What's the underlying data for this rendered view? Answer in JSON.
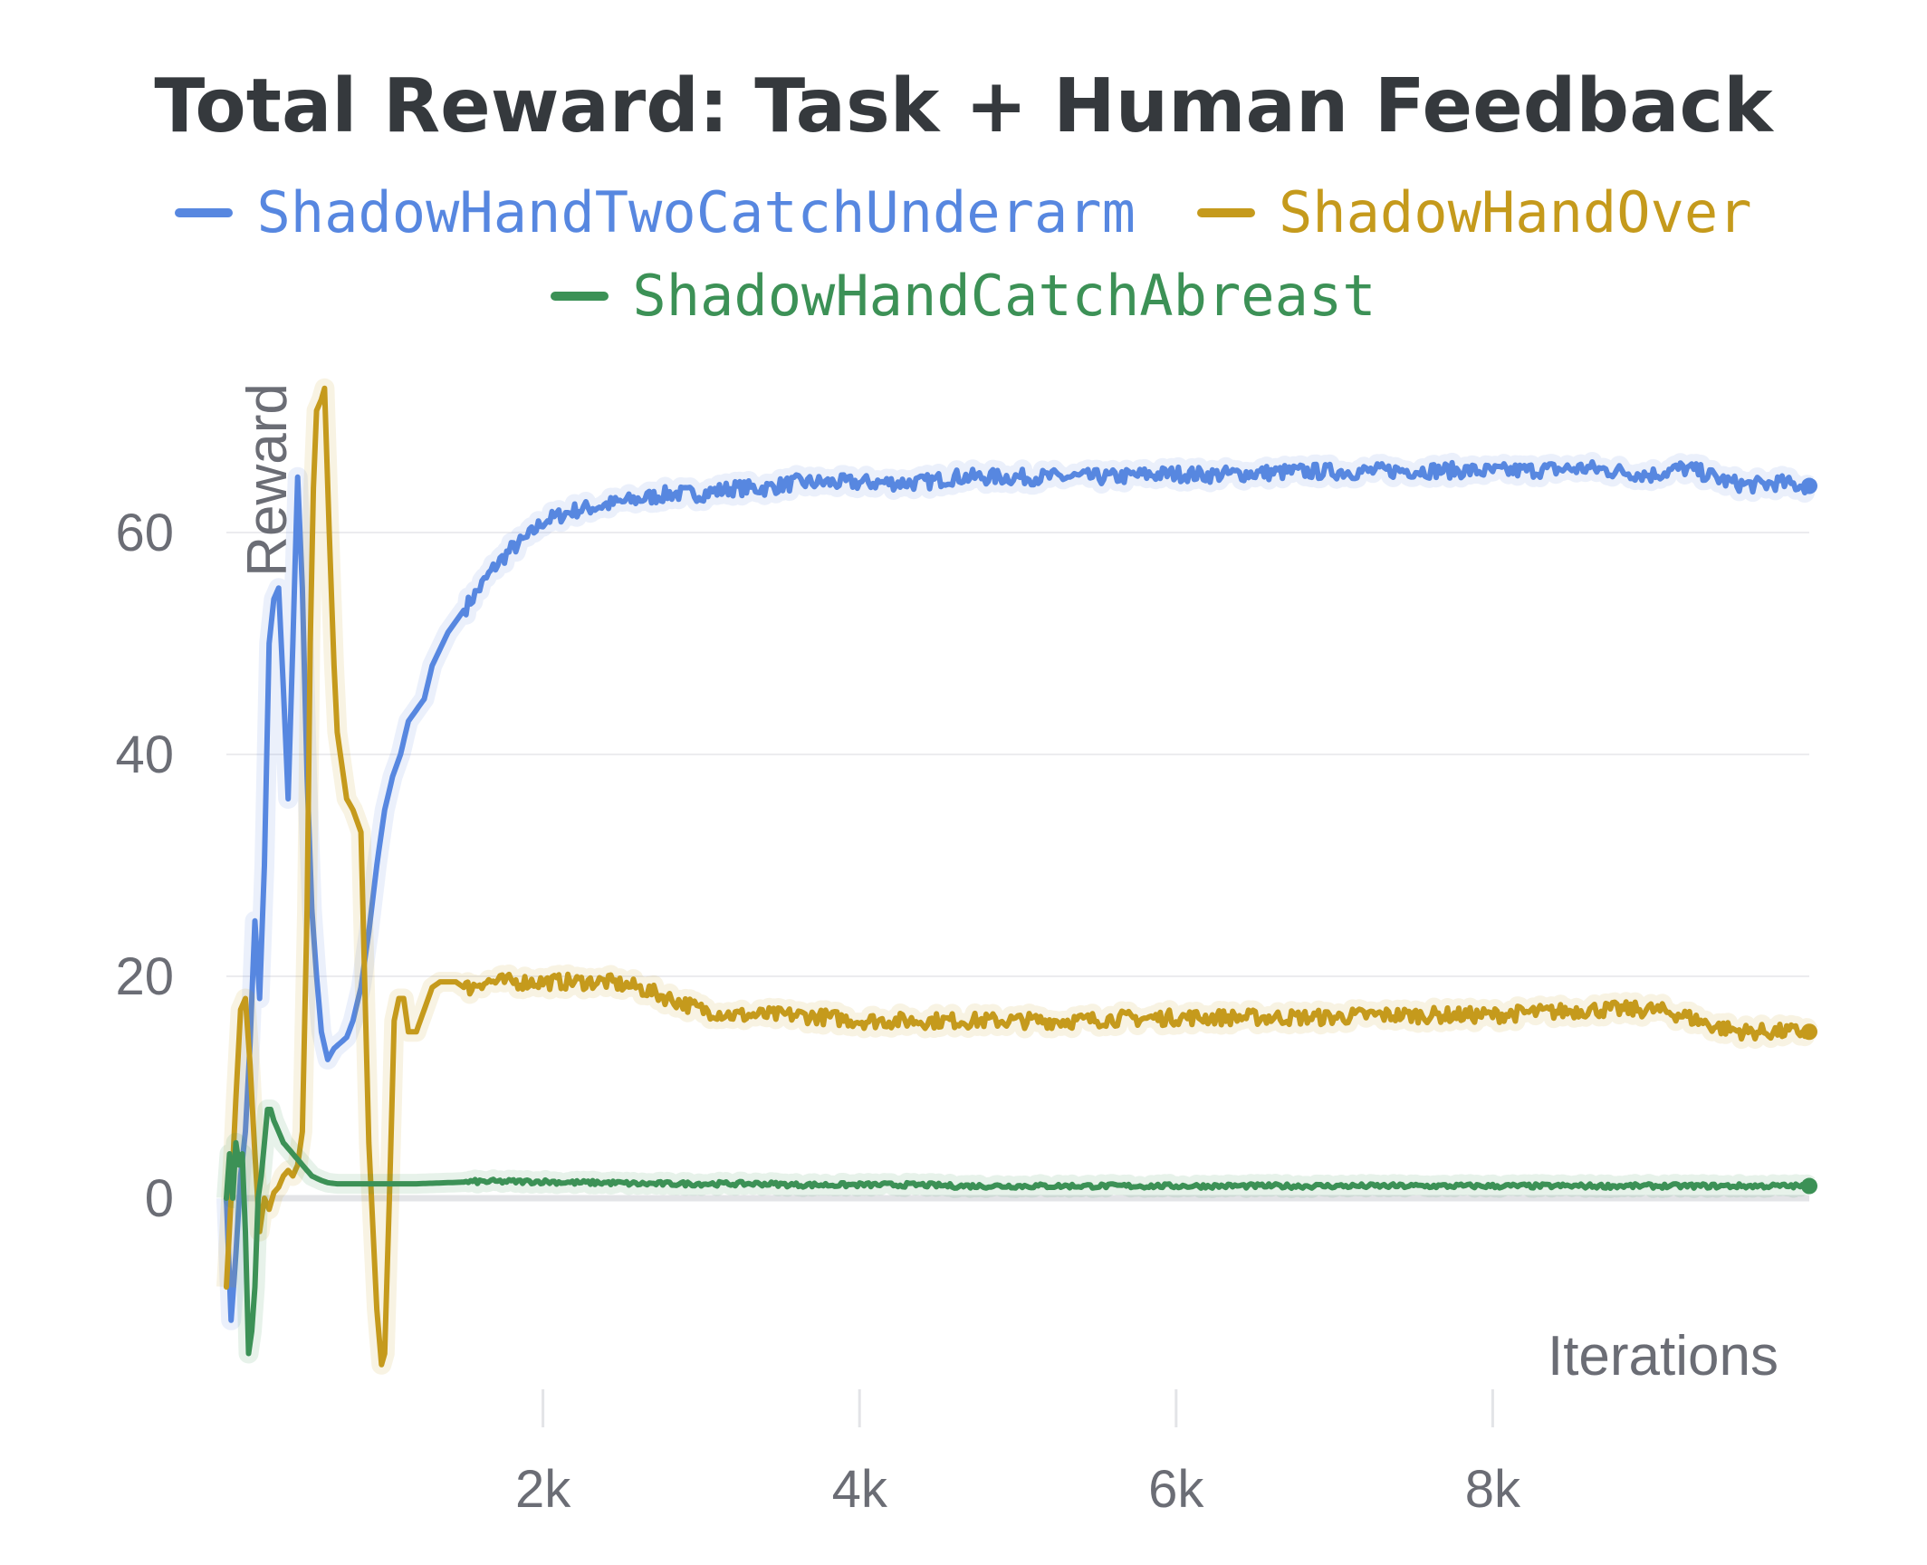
{
  "chart_data": {
    "type": "line",
    "title": "Total Reward: Task + Human Feedback",
    "xlabel": "Iterations",
    "ylabel": "Reward",
    "xlim": [
      0,
      10000
    ],
    "ylim": [
      -19,
      74
    ],
    "x_ticks": [
      2000,
      4000,
      6000,
      8000
    ],
    "x_tick_labels": [
      "2k",
      "4k",
      "6k",
      "8k"
    ],
    "y_ticks": [
      0,
      20,
      40,
      60
    ],
    "y_tick_labels": [
      "0",
      "20",
      "40",
      "60"
    ],
    "grid": true,
    "legend_position": "top",
    "series": [
      {
        "name": "ShadowHandTwoCatchUnderarm",
        "color": "#5787e0",
        "x": [
          0,
          30,
          60,
          90,
          120,
          150,
          180,
          210,
          240,
          270,
          300,
          330,
          360,
          390,
          420,
          450,
          480,
          510,
          540,
          570,
          600,
          640,
          680,
          720,
          760,
          800,
          850,
          900,
          950,
          1000,
          1050,
          1100,
          1150,
          1200,
          1250,
          1300,
          1400,
          1500,
          1600,
          1700,
          1800,
          1900,
          2000,
          2100,
          2200,
          2400,
          2600,
          2800,
          3000,
          3200,
          3400,
          3600,
          3800,
          4000,
          4200,
          4400,
          4600,
          4800,
          5000,
          5200,
          5400,
          5600,
          5800,
          6000,
          6200,
          6400,
          6600,
          6800,
          7000,
          7200,
          7400,
          7600,
          7800,
          8000,
          8200,
          8400,
          8600,
          8800,
          9000,
          9100,
          9200,
          9300,
          9400,
          9500,
          9600,
          9700,
          9800,
          9900,
          10000
        ],
        "y": [
          0,
          -11,
          -5,
          2,
          6,
          14,
          25,
          18,
          30,
          50,
          54,
          55,
          46,
          36,
          50,
          65,
          55,
          38,
          26,
          20,
          15,
          12.5,
          13.5,
          14,
          14.5,
          16,
          19,
          24,
          30,
          35,
          38,
          40,
          43,
          44,
          45,
          48,
          51,
          53,
          55,
          57,
          58.5,
          59.5,
          61,
          61.5,
          62,
          62.5,
          63,
          63.5,
          63.5,
          64,
          64,
          64.5,
          64.5,
          64.5,
          64.5,
          64.5,
          65,
          65,
          65,
          65,
          65,
          65,
          65.2,
          65.3,
          65.2,
          65.3,
          65.4,
          65.5,
          65.5,
          65.5,
          65.6,
          65.6,
          65.6,
          65.5,
          65.6,
          65.7,
          65.8,
          65.5,
          65.2,
          65.5,
          65.8,
          65.5,
          65,
          64.5,
          64.3,
          64.3,
          64.5,
          64.3,
          64.2
        ]
      },
      {
        "name": "ShadowHandOver",
        "color": "#c59a1c",
        "x": [
          0,
          30,
          60,
          90,
          120,
          150,
          180,
          210,
          240,
          270,
          300,
          330,
          360,
          390,
          420,
          450,
          480,
          510,
          530,
          550,
          570,
          600,
          620,
          650,
          680,
          700,
          730,
          760,
          800,
          850,
          900,
          950,
          980,
          1000,
          1030,
          1060,
          1090,
          1120,
          1150,
          1200,
          1250,
          1300,
          1350,
          1400,
          1450,
          1500,
          1550,
          1600,
          1700,
          1800,
          1900,
          2000,
          2100,
          2200,
          2300,
          2400,
          2600,
          2800,
          3000,
          3200,
          3400,
          3600,
          3800,
          4000,
          4200,
          4400,
          4600,
          4800,
          5000,
          5200,
          5400,
          5600,
          5800,
          6000,
          6200,
          6400,
          6600,
          6800,
          7000,
          7200,
          7400,
          7600,
          7800,
          8000,
          8200,
          8400,
          8600,
          8800,
          9000,
          9100,
          9200,
          9300,
          9400,
          9500,
          9600,
          9700,
          9800,
          9900,
          10000
        ],
        "y": [
          -8,
          0,
          9,
          17,
          18,
          12,
          4,
          -3,
          0,
          -1,
          0.5,
          1,
          2,
          2.5,
          2,
          3,
          6,
          26,
          50,
          64,
          71,
          72,
          73,
          60,
          48,
          42,
          39,
          36,
          35,
          33,
          5,
          -10,
          -15,
          -14,
          0,
          16,
          18,
          18,
          15,
          15,
          17,
          19,
          19.5,
          19.5,
          19.5,
          19,
          19,
          19.5,
          19.5,
          19.5,
          19.5,
          19.5,
          19.5,
          19.5,
          19.5,
          19.5,
          19,
          18,
          17,
          16.5,
          16.5,
          16.5,
          16.3,
          16,
          16,
          16,
          16,
          16,
          16,
          16,
          16,
          16.2,
          16.2,
          16.3,
          16.3,
          16.3,
          16.3,
          16.3,
          16.3,
          16.5,
          16.5,
          16.5,
          16.5,
          16.5,
          16.7,
          16.8,
          17,
          17,
          17,
          16.8,
          16.5,
          16,
          15.5,
          15.2,
          15,
          15,
          15,
          15,
          15
        ]
      },
      {
        "name": "ShadowHandCatchAbreast",
        "color": "#3c9156",
        "x": [
          0,
          20,
          40,
          60,
          80,
          100,
          120,
          140,
          160,
          180,
          200,
          220,
          240,
          260,
          280,
          300,
          330,
          360,
          390,
          420,
          450,
          480,
          510,
          540,
          570,
          600,
          640,
          700,
          800,
          900,
          1000,
          1200,
          1400,
          1600,
          1800,
          2000,
          2200,
          2400,
          2600,
          2800,
          3000,
          3200,
          3400,
          3600,
          3800,
          4000,
          4200,
          4400,
          4600,
          4800,
          5000,
          5200,
          5400,
          5600,
          5800,
          6000,
          6200,
          6400,
          6600,
          6800,
          7000,
          7200,
          7400,
          7600,
          7800,
          8000,
          8200,
          8400,
          8600,
          8800,
          9000,
          9200,
          9400,
          9600,
          9800,
          10000
        ],
        "y": [
          0,
          4,
          0,
          5,
          3,
          4,
          -3,
          -14,
          -12,
          -8,
          0,
          2,
          5,
          8,
          8,
          7,
          6,
          5,
          4.5,
          4,
          3.5,
          3,
          2.5,
          2,
          1.8,
          1.6,
          1.4,
          1.3,
          1.3,
          1.3,
          1.3,
          1.3,
          1.4,
          1.5,
          1.5,
          1.5,
          1.4,
          1.4,
          1.3,
          1.3,
          1.3,
          1.3,
          1.3,
          1.2,
          1.2,
          1.2,
          1.2,
          1.2,
          1.1,
          1.1,
          1.1,
          1.1,
          1.1,
          1.1,
          1.1,
          1.1,
          1.1,
          1.1,
          1.1,
          1.1,
          1.1,
          1.1,
          1.1,
          1.1,
          1.1,
          1.1,
          1.1,
          1.1,
          1.1,
          1.1,
          1.1,
          1.1,
          1.1,
          1.1,
          1.1,
          1.1
        ]
      }
    ]
  }
}
